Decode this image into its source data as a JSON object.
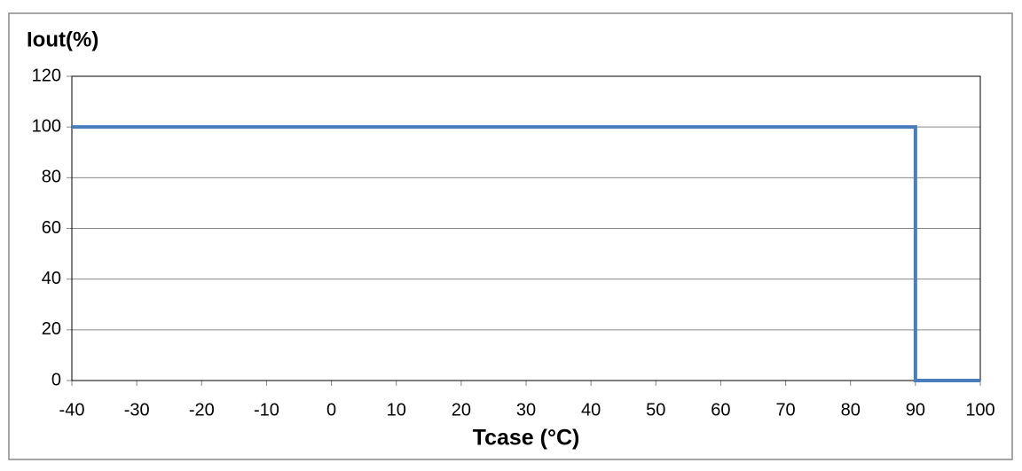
{
  "chart_data": {
    "type": "line",
    "y_label": "Iout(%)",
    "x_label": "Tcase (°C)",
    "series": [
      {
        "color": "#4a7ebb",
        "x": [
          -40,
          90,
          90,
          100
        ],
        "values": [
          100,
          100,
          0,
          0
        ]
      }
    ],
    "xlim": [
      -40,
      100
    ],
    "xticks": [
      -40,
      -30,
      -20,
      -10,
      0,
      10,
      20,
      30,
      40,
      50,
      60,
      70,
      80,
      90,
      100
    ],
    "ylim": [
      0,
      120
    ],
    "yticks": [
      0,
      20,
      40,
      60,
      80,
      100,
      120
    ],
    "grid": true
  }
}
